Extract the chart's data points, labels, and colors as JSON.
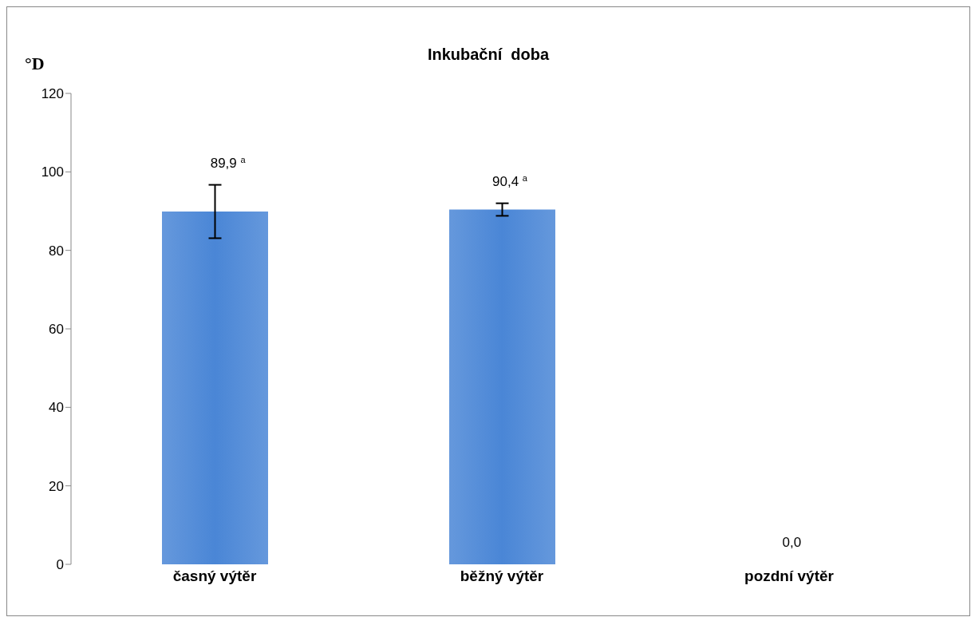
{
  "chart_data": {
    "type": "bar",
    "title": "Inkubační  doba",
    "ylabel": "°D",
    "categories": [
      "časný výtěr",
      "běžný výtěr",
      "pozdní výtěr"
    ],
    "values": [
      89.9,
      90.4,
      0
    ],
    "color": "#4a86d6",
    "errors": [
      6.8,
      1.6,
      0
    ],
    "value_labels": [
      "89,9 $^{a}$",
      "90,4 $^{a}$",
      "0,0"
    ],
    "ylim": [
      0,
      120
    ],
    "yticks": [
      0,
      20,
      40,
      60,
      80,
      100,
      120
    ],
    "grid": false
  }
}
